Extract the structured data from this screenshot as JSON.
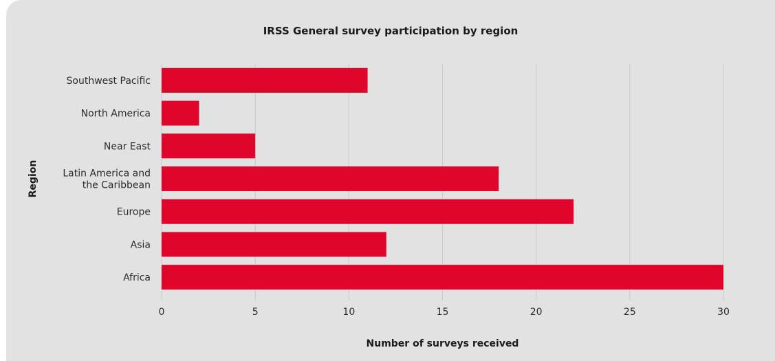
{
  "chart_data": {
    "type": "bar",
    "orientation": "horizontal",
    "title": "IRSS General survey participation by region",
    "xlabel": "Number of surveys received",
    "ylabel": "Region",
    "categories": [
      "Southwest Pacific",
      "North America",
      "Near East",
      "Latin America and the Caribbean",
      "Europe",
      "Asia",
      "Africa"
    ],
    "category_lines": [
      [
        "Southwest Pacific"
      ],
      [
        "North America"
      ],
      [
        "Near East"
      ],
      [
        "Latin America and",
        "the Caribbean"
      ],
      [
        "Europe"
      ],
      [
        "Asia"
      ],
      [
        "Africa"
      ]
    ],
    "values": [
      11,
      2,
      5,
      18,
      22,
      12,
      30
    ],
    "xlim": [
      0,
      30
    ],
    "xticks": [
      0,
      5,
      10,
      15,
      20,
      25,
      30
    ],
    "grid": "vertical",
    "legend": "none",
    "bar_color": "#e0062b",
    "grid_color": "#c8c8c8",
    "background_color": "#e2e2e2"
  }
}
